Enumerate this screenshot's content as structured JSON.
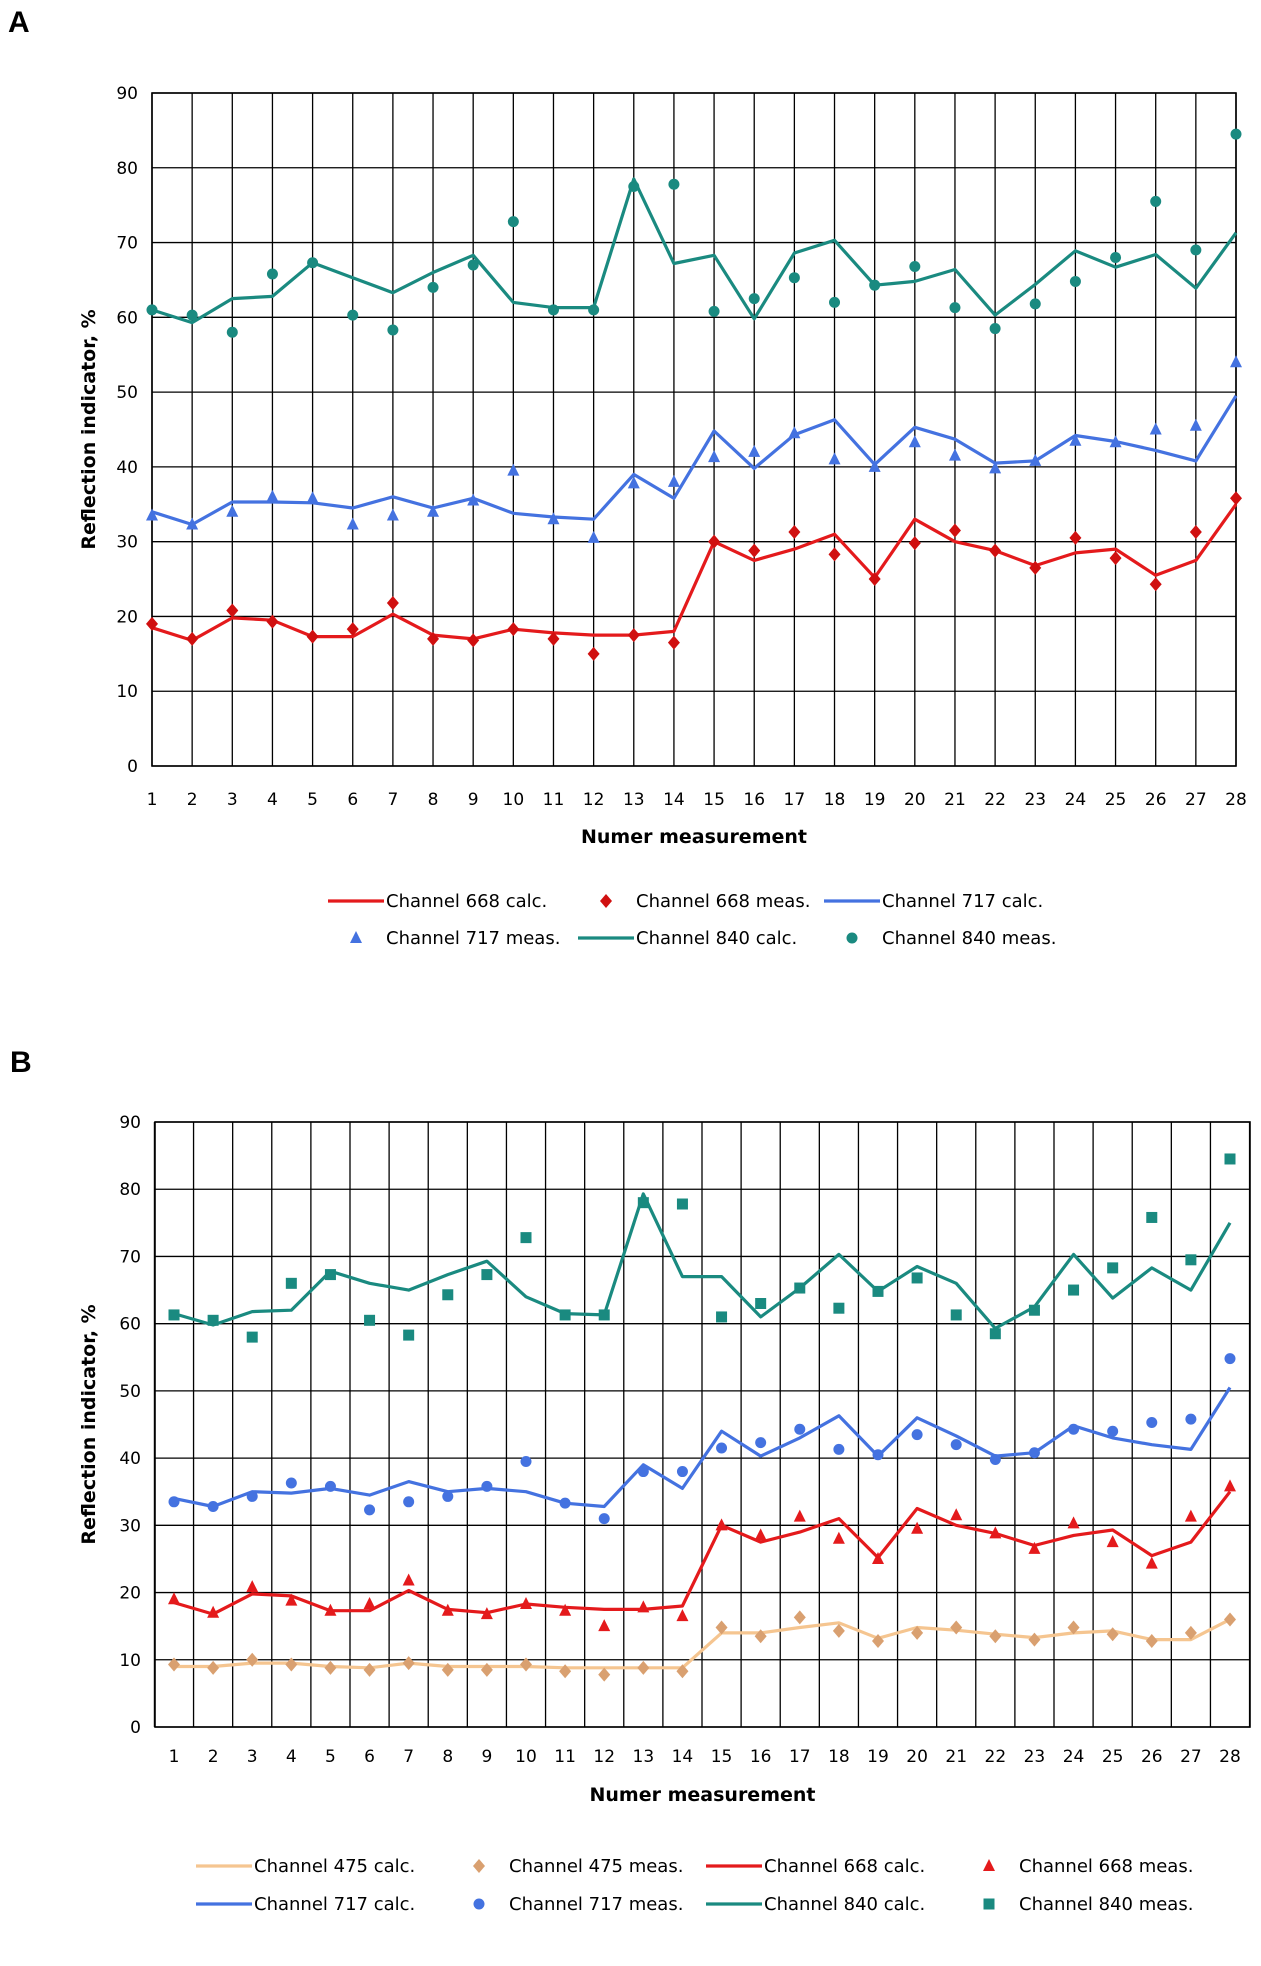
{
  "chart_data": [
    {
      "panel": "A",
      "type": "line",
      "xlabel": "Numer measurement",
      "ylabel": "Reflection indicator, %",
      "ylim": [
        0,
        90
      ],
      "yticks": [
        0,
        10,
        20,
        30,
        40,
        50,
        60,
        70,
        80,
        90
      ],
      "x": [
        1,
        2,
        3,
        4,
        5,
        6,
        7,
        8,
        9,
        10,
        11,
        12,
        13,
        14,
        15,
        16,
        17,
        18,
        19,
        20,
        21,
        22,
        23,
        24,
        25,
        26,
        27,
        28
      ],
      "grid": true,
      "legend_position": "bottom",
      "series": [
        {
          "name": "Channel 668 calc.",
          "kind": "line",
          "color": "#e41a1c",
          "values": [
            18.5,
            16.8,
            19.8,
            19.5,
            17.3,
            17.3,
            20.3,
            17.5,
            17.0,
            18.3,
            17.8,
            17.5,
            17.5,
            18.0,
            30.0,
            27.5,
            29.0,
            31.0,
            25.2,
            33.0,
            30.0,
            28.8,
            26.8,
            28.5,
            29.0,
            25.5,
            27.5,
            35.0
          ]
        },
        {
          "name": "Channel 668 meas.",
          "kind": "marker",
          "marker": "diamond",
          "color": "#d01010",
          "values": [
            19.0,
            17.0,
            20.8,
            19.3,
            17.3,
            18.3,
            21.8,
            17.0,
            16.8,
            18.3,
            17.0,
            15.0,
            17.5,
            16.5,
            30.0,
            28.8,
            31.3,
            28.3,
            25.0,
            29.8,
            31.5,
            28.8,
            26.5,
            30.5,
            27.8,
            24.3,
            31.3,
            35.8
          ]
        },
        {
          "name": "Channel 717 calc.",
          "kind": "line",
          "color": "#4472e0",
          "values": [
            34.0,
            32.3,
            35.3,
            35.3,
            35.2,
            34.5,
            36.0,
            34.5,
            35.8,
            33.8,
            33.3,
            33.0,
            39.0,
            35.8,
            44.8,
            39.8,
            44.3,
            46.3,
            40.3,
            45.3,
            43.7,
            40.5,
            40.8,
            44.2,
            43.4,
            42.2,
            40.8,
            49.5
          ]
        },
        {
          "name": "Channel 717 meas.",
          "kind": "marker",
          "marker": "triangle",
          "color": "#4472e0",
          "values": [
            33.5,
            32.3,
            34.0,
            36.0,
            35.8,
            32.3,
            33.5,
            34.0,
            35.5,
            39.5,
            33.0,
            30.5,
            37.8,
            38.0,
            41.3,
            42.0,
            44.5,
            41.0,
            40.0,
            43.3,
            41.5,
            39.8,
            40.8,
            43.5,
            43.3,
            45.0,
            45.5,
            54.0
          ]
        },
        {
          "name": "Channel 840 calc.",
          "kind": "line",
          "color": "#1a8a80",
          "values": [
            61.0,
            59.3,
            62.5,
            62.8,
            67.3,
            65.3,
            63.3,
            66.0,
            68.3,
            62.0,
            61.3,
            61.3,
            78.5,
            67.2,
            68.3,
            59.8,
            68.6,
            70.3,
            64.3,
            64.8,
            66.4,
            60.3,
            64.4,
            68.9,
            66.7,
            68.4,
            63.9,
            71.3
          ]
        },
        {
          "name": "Channel 840 meas.",
          "kind": "marker",
          "marker": "circle",
          "color": "#1a8a80",
          "values": [
            61.0,
            60.3,
            58.0,
            65.8,
            67.3,
            60.3,
            58.3,
            64.0,
            67.0,
            72.8,
            61.0,
            61.0,
            77.5,
            77.8,
            60.8,
            62.5,
            65.3,
            62.0,
            64.3,
            66.8,
            61.3,
            58.5,
            61.8,
            64.8,
            68.0,
            75.5,
            69.0,
            84.5
          ]
        }
      ]
    },
    {
      "panel": "B",
      "type": "line",
      "xlabel": "Numer measurement",
      "ylabel": "Reflection indicator, %",
      "ylim": [
        0,
        90
      ],
      "yticks": [
        0,
        10,
        20,
        30,
        40,
        50,
        60,
        70,
        80,
        90
      ],
      "x": [
        1,
        2,
        3,
        4,
        5,
        6,
        7,
        8,
        9,
        10,
        11,
        12,
        13,
        14,
        15,
        16,
        17,
        18,
        19,
        20,
        21,
        22,
        23,
        24,
        25,
        26,
        27,
        28
      ],
      "grid": true,
      "legend_position": "bottom",
      "series": [
        {
          "name": "Channel 475 calc.",
          "kind": "line",
          "color": "#f5c590",
          "values": [
            9.0,
            9.0,
            9.5,
            9.5,
            9.0,
            8.8,
            9.5,
            9.0,
            9.0,
            9.0,
            8.8,
            8.8,
            8.8,
            8.8,
            14.0,
            14.0,
            14.8,
            15.5,
            13.2,
            14.8,
            14.4,
            13.8,
            13.3,
            14.0,
            14.3,
            13.0,
            13.0,
            16.0
          ]
        },
        {
          "name": "Channel 475 meas.",
          "kind": "marker",
          "marker": "diamond",
          "color": "#d9a070",
          "values": [
            9.3,
            8.8,
            10.0,
            9.3,
            8.8,
            8.5,
            9.5,
            8.5,
            8.5,
            9.3,
            8.3,
            7.8,
            8.8,
            8.3,
            14.8,
            13.5,
            16.3,
            14.3,
            12.8,
            14.0,
            14.8,
            13.5,
            13.0,
            14.8,
            13.8,
            12.8,
            14.0,
            16.0
          ]
        },
        {
          "name": "Channel 668 calc.",
          "kind": "line",
          "color": "#e41a1c",
          "values": [
            18.5,
            16.8,
            19.8,
            19.5,
            17.3,
            17.3,
            20.3,
            17.5,
            17.0,
            18.3,
            17.8,
            17.5,
            17.5,
            18.0,
            30.0,
            27.5,
            29.0,
            31.0,
            25.2,
            32.5,
            30.0,
            28.8,
            27.0,
            28.5,
            29.3,
            25.5,
            27.5,
            35.0
          ]
        },
        {
          "name": "Channel 668 meas.",
          "kind": "marker",
          "marker": "triangle",
          "color": "#e41a1c",
          "values": [
            19.0,
            17.0,
            20.8,
            18.8,
            17.3,
            18.3,
            21.8,
            17.3,
            16.8,
            18.3,
            17.3,
            15.0,
            17.8,
            16.5,
            30.0,
            28.5,
            31.3,
            28.0,
            25.0,
            29.5,
            31.5,
            28.8,
            26.5,
            30.3,
            27.5,
            24.3,
            31.3,
            35.8
          ]
        },
        {
          "name": "Channel 717 calc.",
          "kind": "line",
          "color": "#4472e0",
          "values": [
            34.0,
            32.8,
            35.0,
            34.8,
            35.5,
            34.5,
            36.5,
            35.0,
            35.5,
            35.0,
            33.3,
            32.8,
            39.0,
            35.5,
            44.0,
            40.3,
            43.0,
            46.3,
            40.3,
            46.0,
            43.3,
            40.3,
            40.8,
            44.8,
            43.0,
            42.0,
            41.3,
            50.5
          ]
        },
        {
          "name": "Channel 717 meas.",
          "kind": "marker",
          "marker": "circle",
          "color": "#4472e0",
          "values": [
            33.5,
            32.8,
            34.3,
            36.3,
            35.8,
            32.3,
            33.5,
            34.3,
            35.8,
            39.5,
            33.3,
            31.0,
            38.0,
            38.0,
            41.5,
            42.3,
            44.3,
            41.3,
            40.5,
            43.5,
            42.0,
            39.8,
            40.8,
            44.3,
            44.0,
            45.3,
            45.8,
            54.8
          ]
        },
        {
          "name": "Channel 840 calc.",
          "kind": "line",
          "color": "#1a8a80",
          "values": [
            61.5,
            59.8,
            61.8,
            62.0,
            67.8,
            66.0,
            65.0,
            67.3,
            69.3,
            64.0,
            61.5,
            61.3,
            79.3,
            67.0,
            67.0,
            61.0,
            65.3,
            70.3,
            64.8,
            68.5,
            66.0,
            59.3,
            62.5,
            70.3,
            63.8,
            68.3,
            65.0,
            75.0
          ]
        },
        {
          "name": "Channel 840 meas.",
          "kind": "marker",
          "marker": "square",
          "color": "#1a8a80",
          "values": [
            61.3,
            60.5,
            58.0,
            66.0,
            67.3,
            60.5,
            58.3,
            64.3,
            67.3,
            72.8,
            61.3,
            61.3,
            78.0,
            77.8,
            61.0,
            63.0,
            65.3,
            62.3,
            64.8,
            66.8,
            61.3,
            58.5,
            62.0,
            65.0,
            68.3,
            75.8,
            69.5,
            84.5
          ]
        }
      ]
    }
  ],
  "panels": [
    {
      "label": "A"
    },
    {
      "label": "B"
    }
  ]
}
